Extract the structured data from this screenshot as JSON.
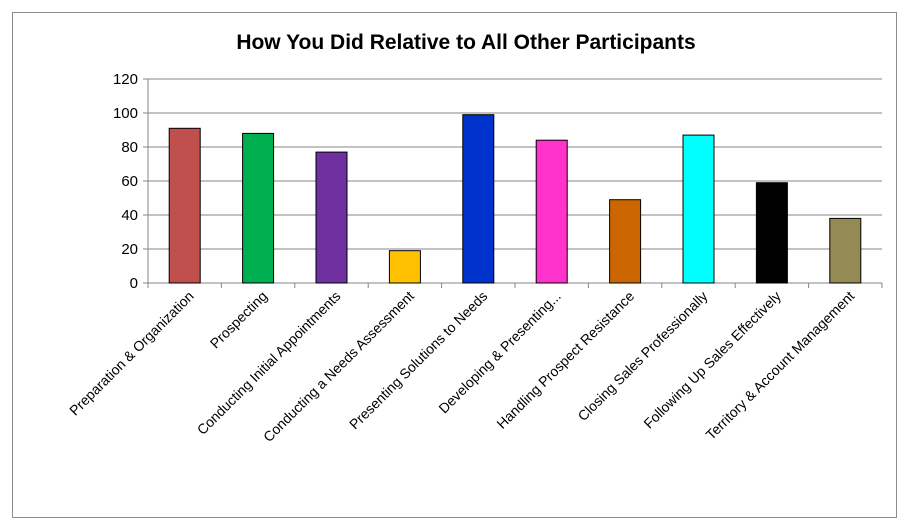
{
  "chart_data": {
    "type": "bar",
    "title": "How You Did Relative to All Other Participants",
    "xlabel": "",
    "ylabel": "",
    "ylim": [
      0,
      120
    ],
    "yticks": [
      0,
      20,
      40,
      60,
      80,
      100,
      120
    ],
    "grid": true,
    "legend": "none",
    "categories": [
      "Preparation & Organization",
      "Prospecting",
      "Conducting Initial Appointments",
      "Conducting a Needs Assessment",
      "Presenting Solutions to Needs",
      "Developing & Presenting...",
      "Handling Prospect Resistance",
      "Closing Sales Professionally",
      "Following Up Sales Effectively",
      "Territory & Account Management"
    ],
    "values": [
      91,
      88,
      77,
      19,
      99,
      84,
      49,
      87,
      59,
      38
    ],
    "colors": [
      "#C0504D",
      "#00B050",
      "#7030A0",
      "#FFC000",
      "#0033CC",
      "#FF33CC",
      "#CC6600",
      "#00FFFF",
      "#000000",
      "#948A54"
    ]
  }
}
